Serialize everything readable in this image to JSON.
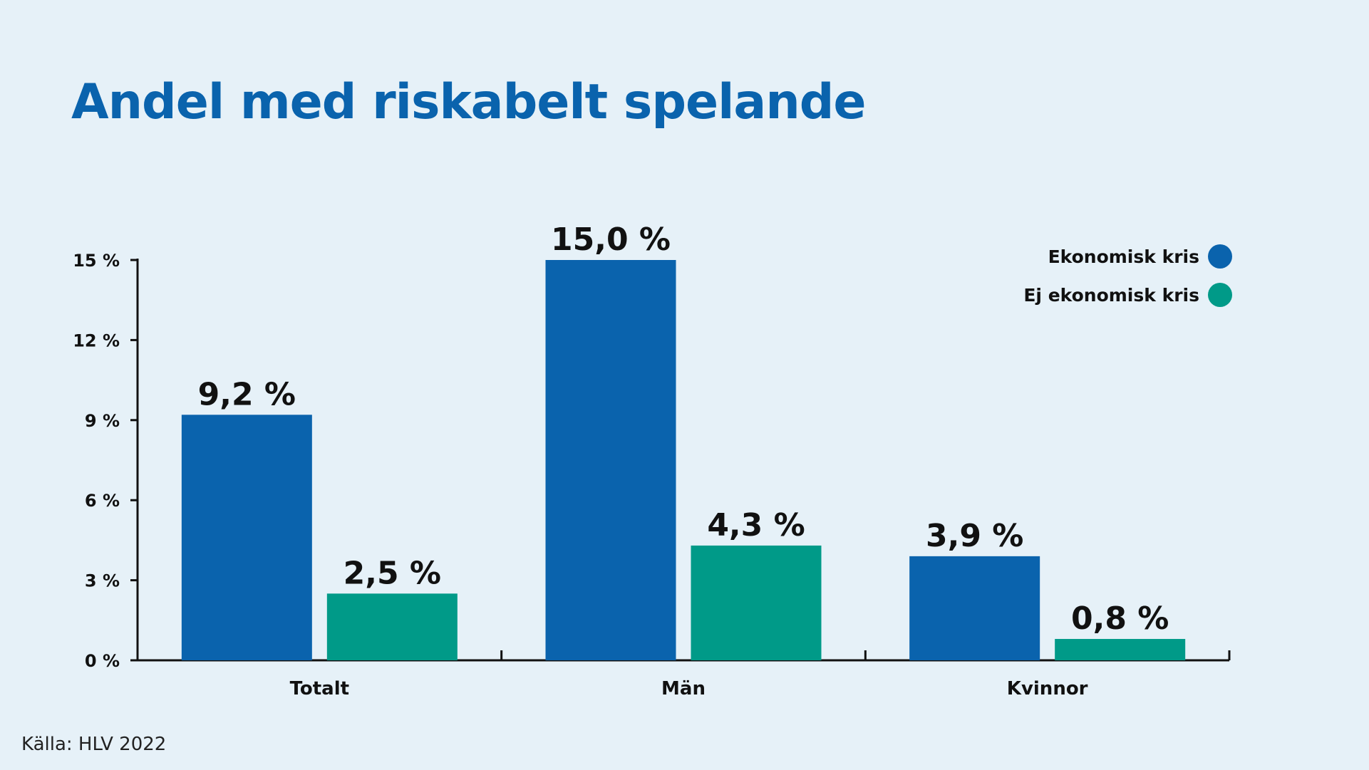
{
  "chart_data": {
    "type": "bar",
    "title": "Andel med riskabelt spelande",
    "categories": [
      "Totalt",
      "Män",
      "Kvinnor"
    ],
    "series": [
      {
        "name": "Ekonomisk kris",
        "color": "#0a63ad",
        "values": [
          9.2,
          15.0,
          3.9
        ],
        "labels": [
          "9,2 %",
          "15,0 %",
          "3,9 %"
        ]
      },
      {
        "name": "Ej ekonomisk kris",
        "color": "#009a88",
        "values": [
          2.5,
          4.3,
          0.8
        ],
        "labels": [
          "2,5 %",
          "4,3 %",
          "0,8 %"
        ]
      }
    ],
    "yticks": [
      0,
      3,
      6,
      9,
      12,
      15
    ],
    "ytick_labels": [
      "0 %",
      "3 %",
      "6 %",
      "9 %",
      "12 %",
      "15 %"
    ],
    "ylim": [
      0,
      15
    ],
    "xlabel": "",
    "ylabel": "",
    "grid": false,
    "legend": "top-right"
  },
  "source": "Källa: HLV 2022"
}
